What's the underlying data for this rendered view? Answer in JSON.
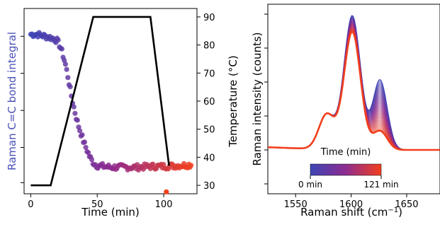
{
  "chart_data": [
    {
      "type": "scatter",
      "xlabel": "Time (min)",
      "ylabel_left": "Raman C=C bond integral",
      "ylabel_right": "Temperature (°C)",
      "xlim": [
        -5,
        125
      ],
      "x_ticks": [
        "0",
        "50",
        "100"
      ],
      "left_y_ticks": [
        "",
        "",
        "",
        "",
        ""
      ],
      "right_ylim": [
        27,
        93
      ],
      "right_y_ticks": [
        "30",
        "40",
        "50",
        "60",
        "70",
        "80",
        "90"
      ],
      "integral_ylim": [
        0.0,
        1.0
      ],
      "colors": {
        "start": "#3b45b5",
        "mid": "#8e2c91",
        "end": "#f23e1c",
        "temperature": "#000000",
        "ylabel_left": "#4a52b8"
      },
      "series": [
        {
          "axis": "left",
          "points": [
            [
              0,
              0.92
            ],
            [
              5,
              0.92
            ],
            [
              10,
              0.91
            ],
            [
              15,
              0.9
            ],
            [
              18,
              0.89
            ],
            [
              20,
              0.88
            ],
            [
              22,
              0.85
            ],
            [
              24,
              0.8
            ],
            [
              26,
              0.74
            ],
            [
              28,
              0.66
            ],
            [
              30,
              0.57
            ],
            [
              32,
              0.49
            ],
            [
              34,
              0.42
            ],
            [
              36,
              0.36
            ],
            [
              38,
              0.31
            ],
            [
              40,
              0.26
            ],
            [
              42,
              0.22
            ],
            [
              44,
              0.18
            ],
            [
              46,
              0.15
            ],
            [
              48,
              0.13
            ],
            [
              50,
              0.12
            ],
            [
              55,
              0.115
            ],
            [
              60,
              0.11
            ],
            [
              70,
              0.11
            ],
            [
              80,
              0.11
            ],
            [
              90,
              0.115
            ],
            [
              100,
              0.115
            ],
            [
              110,
              0.12
            ],
            [
              121,
              0.125
            ]
          ],
          "outlier": [
            102,
            -0.04
          ]
        },
        {
          "axis": "right",
          "x": [
            0,
            15,
            47,
            90,
            104
          ],
          "y": [
            30,
            30,
            90,
            90,
            37
          ]
        }
      ]
    },
    {
      "type": "line",
      "xlabel": "Raman shift (cm−1)",
      "ylabel": "Raman intensity (counts)",
      "xlim": [
        1525,
        1680
      ],
      "x_ticks": [
        "1550",
        "1600",
        "1650"
      ],
      "y_ticks": [
        "",
        "",
        "",
        "",
        "",
        ""
      ],
      "ylim": [
        0,
        1.0
      ],
      "series_count_label": "0 to 121 min",
      "first_spectrum_peak": 1.0,
      "last_spectrum_peak": 0.88,
      "colorbar": {
        "title": "Time (min)",
        "min_label": "0 min",
        "max_label": "121 min"
      }
    }
  ]
}
